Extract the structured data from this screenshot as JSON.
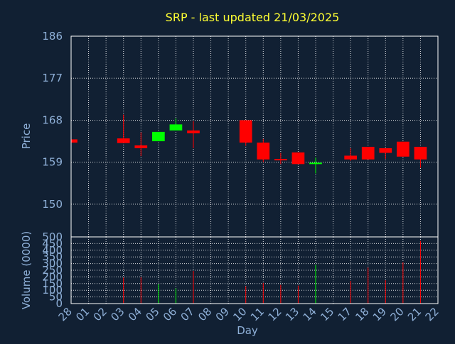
{
  "chart_data": {
    "type": "candlestick",
    "title": "SRP - last updated 21/03/2025",
    "xlabel": "Day",
    "ylabel": "Price",
    "volume_label": "Volume (0000)",
    "x_ticks": [
      "28",
      "01",
      "02",
      "03",
      "04",
      "05",
      "06",
      "07",
      "08",
      "09",
      "10",
      "11",
      "12",
      "13",
      "14",
      "15",
      "17",
      "18",
      "19",
      "20",
      "21",
      "22"
    ],
    "price_ticks": [
      150,
      159,
      168,
      177,
      186
    ],
    "price_range": [
      143,
      186
    ],
    "volume_ticks": [
      0,
      50,
      100,
      150,
      200,
      250,
      300,
      350,
      400,
      450,
      500
    ],
    "volume_range": [
      0,
      500
    ],
    "grid": true,
    "up_color": "#00ff00",
    "down_color": "#ff0000",
    "background": "#112033",
    "candles": [
      {
        "day": "28",
        "open": 163.9,
        "close": 163.2,
        "high": 163.9,
        "low": 163.2,
        "volume": 0
      },
      {
        "day": "03",
        "open": 164.1,
        "close": 163.1,
        "high": 169.2,
        "low": 163.1,
        "volume": 195
      },
      {
        "day": "04",
        "open": 162.6,
        "close": 162.0,
        "high": 165.4,
        "low": 160.3,
        "volume": 198
      },
      {
        "day": "05",
        "open": 163.5,
        "close": 165.5,
        "high": 165.5,
        "low": 163.5,
        "volume": 145
      },
      {
        "day": "06",
        "open": 165.8,
        "close": 167.1,
        "high": 168.4,
        "low": 165.8,
        "volume": 115
      },
      {
        "day": "07",
        "open": 165.8,
        "close": 165.2,
        "high": 167.8,
        "low": 162.0,
        "volume": 245
      },
      {
        "day": "10",
        "open": 168.0,
        "close": 163.2,
        "high": 168.0,
        "low": 162.5,
        "volume": 130
      },
      {
        "day": "11",
        "open": 163.2,
        "close": 159.6,
        "high": 164.0,
        "low": 159.0,
        "volume": 155
      },
      {
        "day": "12",
        "open": 159.7,
        "close": 159.4,
        "high": 161.0,
        "low": 158.6,
        "volume": 140
      },
      {
        "day": "13",
        "open": 161.1,
        "close": 158.6,
        "high": 161.1,
        "low": 158.6,
        "volume": 135
      },
      {
        "day": "14",
        "open": 158.6,
        "close": 158.9,
        "high": 160.0,
        "low": 156.6,
        "volume": 290
      },
      {
        "day": "17",
        "open": 160.4,
        "close": 159.6,
        "high": 162.0,
        "low": 159.3,
        "volume": 170
      },
      {
        "day": "18",
        "open": 162.3,
        "close": 159.6,
        "high": 162.3,
        "low": 159.6,
        "volume": 270
      },
      {
        "day": "19",
        "open": 162.0,
        "close": 161.0,
        "high": 162.0,
        "low": 159.7,
        "volume": 175
      },
      {
        "day": "20",
        "open": 163.4,
        "close": 160.2,
        "high": 163.4,
        "low": 160.2,
        "volume": 310
      },
      {
        "day": "21",
        "open": 162.3,
        "close": 159.6,
        "high": 162.3,
        "low": 157.8,
        "volume": 470
      }
    ]
  }
}
